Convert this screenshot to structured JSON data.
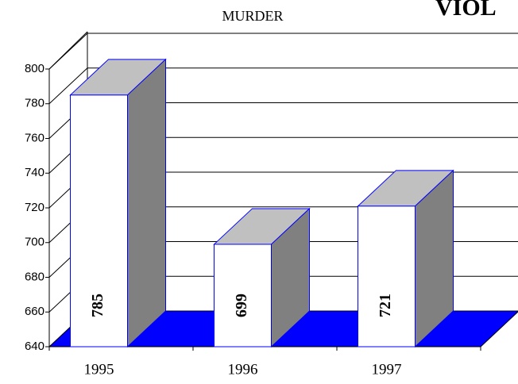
{
  "chart_data": {
    "type": "bar",
    "title": "MURDER",
    "header_text": "VIOL",
    "categories": [
      "1995",
      "1996",
      "1997"
    ],
    "values": [
      785,
      699,
      721
    ],
    "color": "#ffffff",
    "edge_color": "#0000ff",
    "top_color": "#c0c0c0",
    "side_color": "#808080",
    "floor_color": "#0000ff",
    "ylim": [
      640,
      800
    ],
    "yticks": [
      640,
      660,
      680,
      700,
      720,
      740,
      760,
      780,
      800
    ],
    "grid": true
  }
}
